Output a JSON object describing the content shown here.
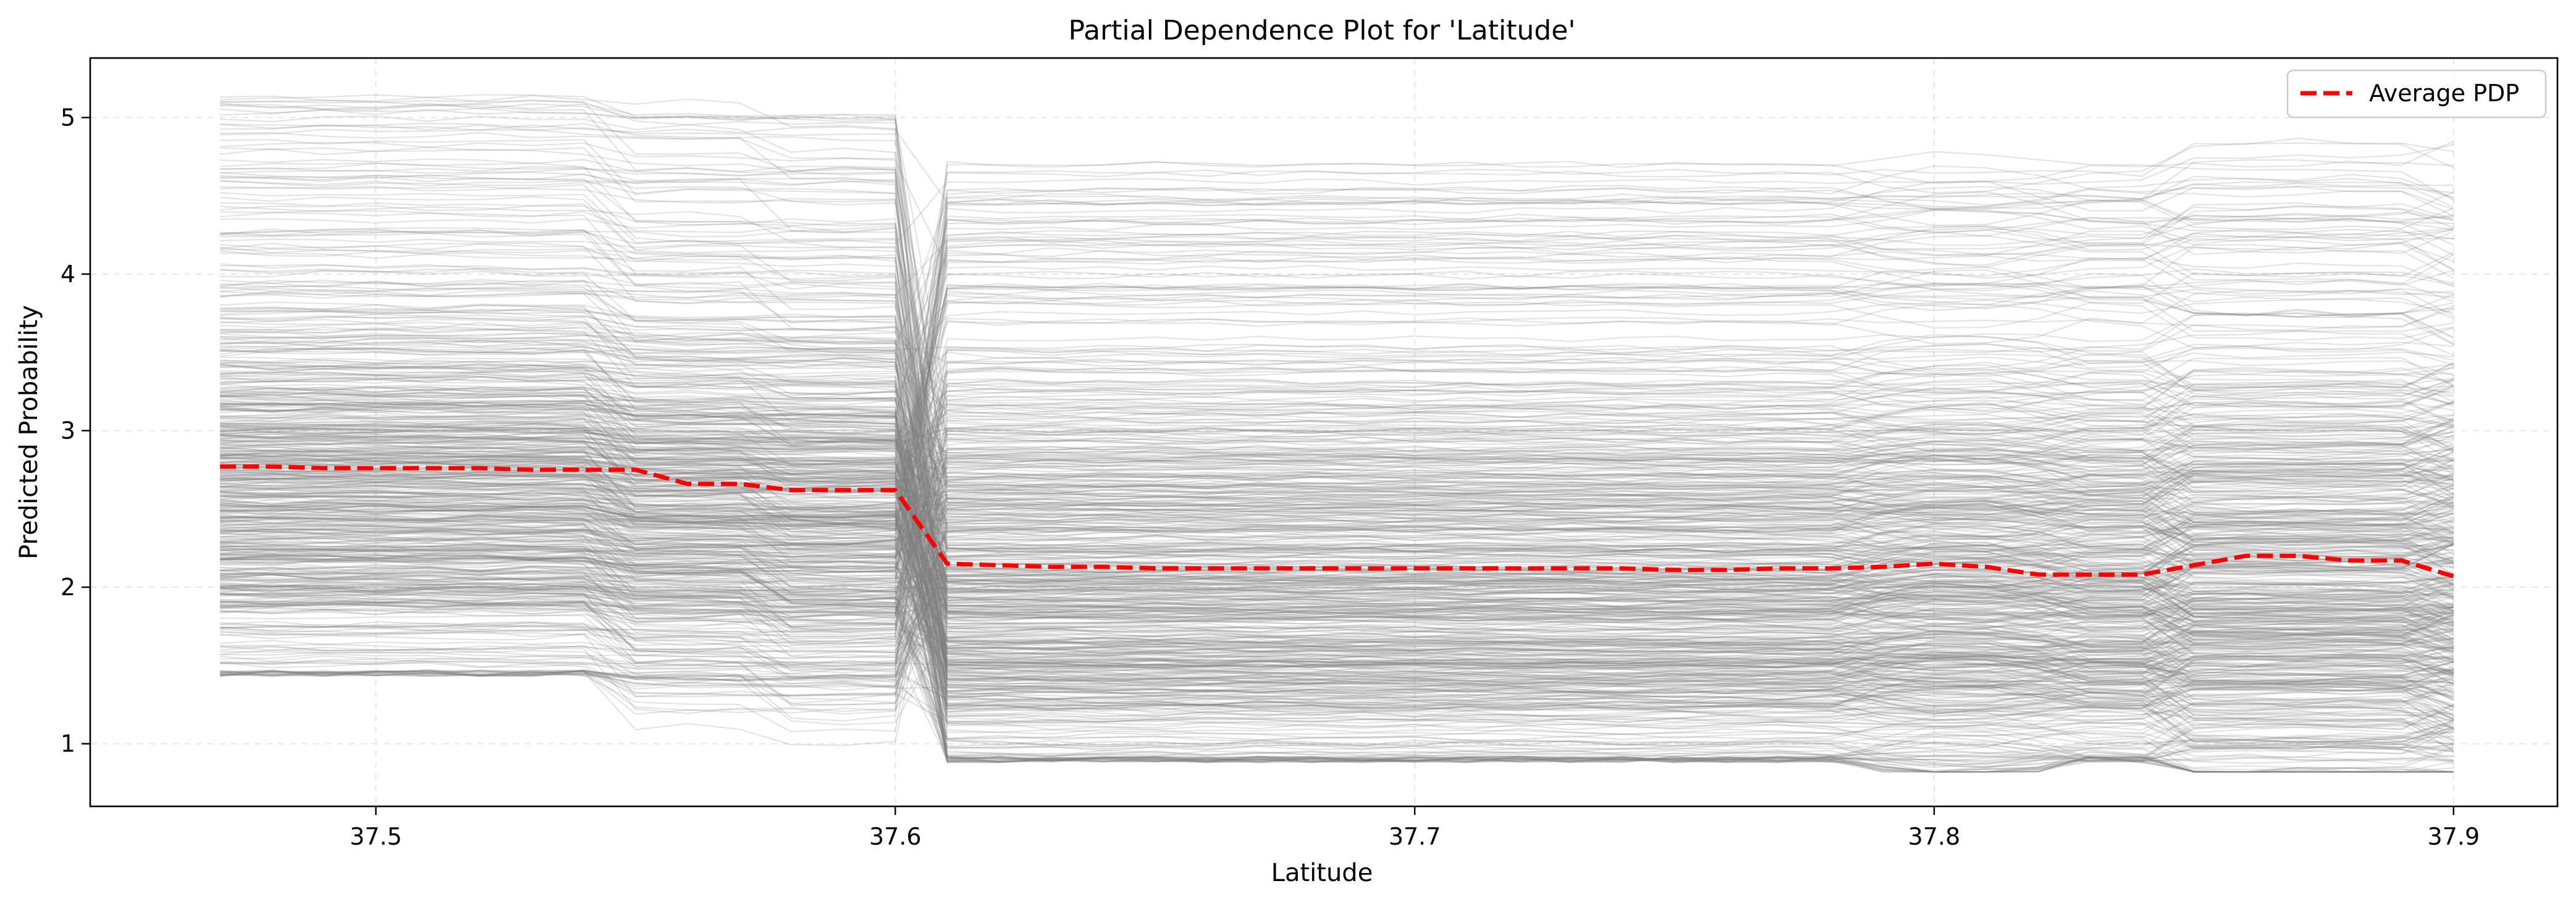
{
  "chart_data": {
    "type": "line",
    "title": "Partial Dependence Plot for 'Latitude'",
    "xlabel": "Latitude",
    "ylabel": "Predicted Probability",
    "xlim": [
      37.445,
      37.92
    ],
    "ylim": [
      0.6,
      5.38
    ],
    "xticks": [
      37.5,
      37.6,
      37.7,
      37.8,
      37.9
    ],
    "xtick_labels": [
      "37.5",
      "37.6",
      "37.7",
      "37.8",
      "37.9"
    ],
    "yticks": [
      1,
      2,
      3,
      4,
      5
    ],
    "ytick_labels": [
      "1",
      "2",
      "3",
      "4",
      "5"
    ],
    "grid": true,
    "legend_position": "top-right",
    "legend": [
      "Average PDP"
    ],
    "x": [
      37.47,
      37.48,
      37.49,
      37.5,
      37.51,
      37.52,
      37.53,
      37.54,
      37.55,
      37.56,
      37.57,
      37.58,
      37.59,
      37.6,
      37.61,
      37.62,
      37.63,
      37.64,
      37.65,
      37.66,
      37.67,
      37.68,
      37.69,
      37.7,
      37.71,
      37.72,
      37.73,
      37.74,
      37.75,
      37.76,
      37.77,
      37.78,
      37.79,
      37.8,
      37.81,
      37.82,
      37.83,
      37.84,
      37.85,
      37.86,
      37.87,
      37.88,
      37.89,
      37.9
    ],
    "series": [
      {
        "name": "Average PDP",
        "color": "#ff0000",
        "style": "dashed",
        "values": [
          2.77,
          2.77,
          2.76,
          2.76,
          2.76,
          2.76,
          2.75,
          2.75,
          2.75,
          2.66,
          2.66,
          2.62,
          2.62,
          2.62,
          2.15,
          2.14,
          2.13,
          2.13,
          2.12,
          2.12,
          2.12,
          2.12,
          2.12,
          2.12,
          2.12,
          2.12,
          2.12,
          2.12,
          2.11,
          2.11,
          2.12,
          2.12,
          2.13,
          2.15,
          2.13,
          2.08,
          2.08,
          2.08,
          2.14,
          2.2,
          2.2,
          2.17,
          2.17,
          2.07
        ]
      }
    ],
    "ice_curves": {
      "description": "individual conditional expectation curves",
      "color": "#808080",
      "opacity": 0.22,
      "count": 600,
      "first_segment_range": [
        1.42,
        5.18
      ],
      "second_segment_range": [
        0.88,
        4.72
      ]
    }
  }
}
